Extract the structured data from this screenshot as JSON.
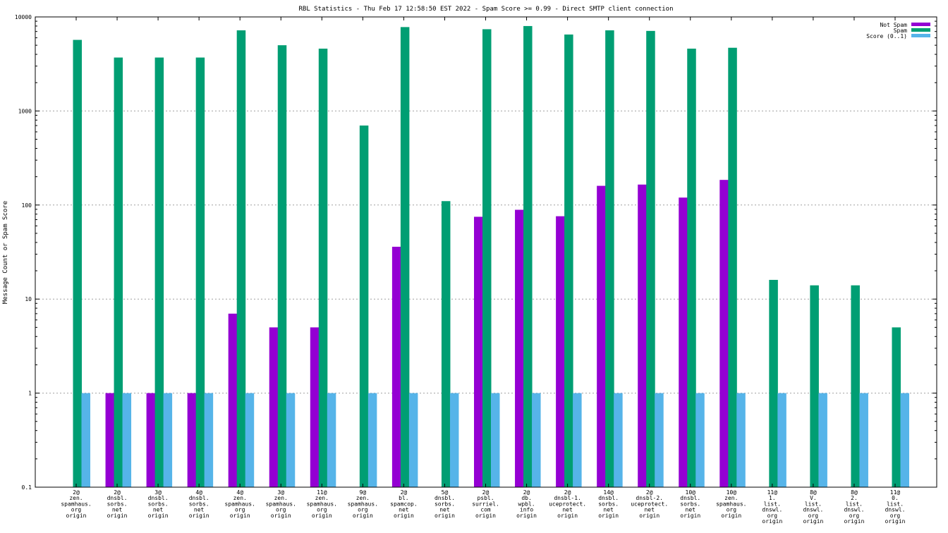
{
  "chart_data": {
    "type": "bar",
    "title": "RBL Statistics - Thu Feb 17 12:58:50 EST 2022 - Spam Score >= 0.99 - Direct SMTP client connection",
    "ylabel": "Message Count or Spam Score",
    "xlabel": "",
    "yscale": "log",
    "ylim": [
      0.1,
      10000
    ],
    "yticks": [
      0.1,
      1,
      10,
      100,
      1000,
      10000
    ],
    "ytick_labels": [
      "0.1",
      "1",
      "10",
      "100",
      "1000",
      "10000"
    ],
    "grid": true,
    "legend_position": "top-right",
    "categories": [
      [
        "2@",
        "zen.",
        "spamhaus.",
        "org",
        "origin"
      ],
      [
        "2@",
        "dnsbl.",
        "sorbs.",
        "net",
        "origin"
      ],
      [
        "3@",
        "dnsbl.",
        "sorbs.",
        "net",
        "origin"
      ],
      [
        "4@",
        "dnsbl.",
        "sorbs.",
        "net",
        "origin"
      ],
      [
        "4@",
        "zen.",
        "spamhaus.",
        "org",
        "origin"
      ],
      [
        "3@",
        "zen.",
        "spamhaus.",
        "org",
        "origin"
      ],
      [
        "11@",
        "zen.",
        "spamhaus.",
        "org",
        "origin"
      ],
      [
        "9@",
        "zen.",
        "spamhaus.",
        "org",
        "origin"
      ],
      [
        "2@",
        "bl.",
        "spamcop.",
        "net",
        "origin"
      ],
      [
        "5@",
        "dnsbl.",
        "sorbs.",
        "net",
        "origin"
      ],
      [
        "2@",
        "psbl.",
        "surriel.",
        "com",
        "origin"
      ],
      [
        "2@",
        "db.",
        "wpbl.",
        "info",
        "origin"
      ],
      [
        "2@",
        "dnsbl-1.",
        "uceprotect.",
        "net",
        "origin"
      ],
      [
        "14@",
        "dnsbl.",
        "sorbs.",
        "net",
        "origin"
      ],
      [
        "2@",
        "dnsbl-2.",
        "uceprotect.",
        "net",
        "origin"
      ],
      [
        "10@",
        "dnsbl.",
        "sorbs.",
        "net",
        "origin"
      ],
      [
        "10@",
        "zen.",
        "spamhaus.",
        "org",
        "origin"
      ],
      [
        "11@",
        "1.",
        "list.",
        "dnswl.",
        "org",
        "origin"
      ],
      [
        "8@",
        "V.",
        "list.",
        "dnswl.",
        "org",
        "origin"
      ],
      [
        "8@",
        "2.",
        "list.",
        "dnswl.",
        "org",
        "origin"
      ],
      [
        "11@",
        "0.",
        "list.",
        "dnswl.",
        "org",
        "origin"
      ]
    ],
    "series": [
      {
        "name": "Not Spam",
        "color": "#9400d3",
        "values": [
          null,
          1,
          1,
          1,
          7,
          5,
          5,
          null,
          36,
          null,
          75,
          89,
          76,
          160,
          165,
          120,
          185,
          null,
          null,
          null,
          null
        ]
      },
      {
        "name": "Spam",
        "color": "#009e73",
        "values": [
          5700,
          3700,
          3700,
          3700,
          7200,
          5000,
          4600,
          700,
          7800,
          110,
          7400,
          8000,
          6500,
          7200,
          7100,
          4600,
          4700,
          16,
          14,
          14,
          5
        ]
      },
      {
        "name": "Score (0..1)",
        "color": "#56b4e9",
        "values": [
          1,
          1,
          1,
          1,
          1,
          1,
          1,
          1,
          1,
          1,
          1,
          1,
          1,
          1,
          1,
          1,
          1,
          1,
          1,
          1,
          1
        ]
      }
    ]
  }
}
